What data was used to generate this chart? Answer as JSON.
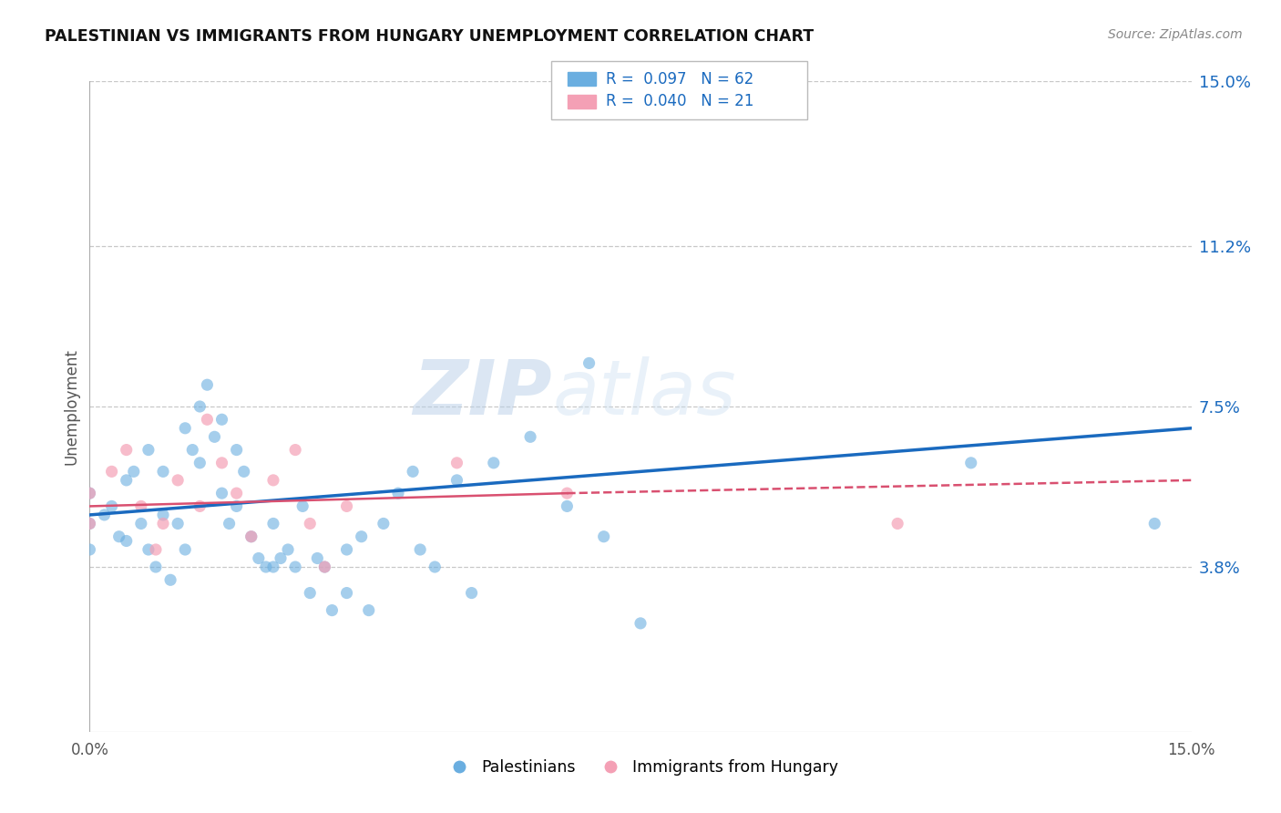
{
  "title": "PALESTINIAN VS IMMIGRANTS FROM HUNGARY UNEMPLOYMENT CORRELATION CHART",
  "source": "Source: ZipAtlas.com",
  "ylabel": "Unemployment",
  "xlim": [
    0,
    0.15
  ],
  "ylim": [
    0,
    0.15
  ],
  "ytick_labels_right": [
    "3.8%",
    "7.5%",
    "11.2%",
    "15.0%"
  ],
  "ytick_vals_right": [
    0.038,
    0.075,
    0.112,
    0.15
  ],
  "grid_color": "#c8c8c8",
  "background_color": "#ffffff",
  "blue_R": 0.097,
  "blue_N": 62,
  "pink_R": 0.04,
  "pink_N": 21,
  "blue_color": "#6aaee0",
  "pink_color": "#f4a0b5",
  "blue_line_color": "#1a6abf",
  "pink_line_color": "#d95070",
  "legend_label_blue": "Palestinians",
  "legend_label_pink": "Immigrants from Hungary",
  "watermark_zip": "ZIP",
  "watermark_atlas": "atlas",
  "blue_scatter_x": [
    0.0,
    0.0,
    0.0,
    0.002,
    0.003,
    0.004,
    0.005,
    0.005,
    0.006,
    0.007,
    0.008,
    0.008,
    0.009,
    0.01,
    0.01,
    0.011,
    0.012,
    0.013,
    0.013,
    0.014,
    0.015,
    0.015,
    0.016,
    0.017,
    0.018,
    0.018,
    0.019,
    0.02,
    0.02,
    0.021,
    0.022,
    0.023,
    0.024,
    0.025,
    0.025,
    0.026,
    0.027,
    0.028,
    0.029,
    0.03,
    0.031,
    0.032,
    0.033,
    0.035,
    0.035,
    0.037,
    0.038,
    0.04,
    0.042,
    0.044,
    0.045,
    0.047,
    0.05,
    0.052,
    0.055,
    0.06,
    0.065,
    0.068,
    0.07,
    0.075,
    0.12,
    0.145
  ],
  "blue_scatter_y": [
    0.055,
    0.048,
    0.042,
    0.05,
    0.052,
    0.045,
    0.058,
    0.044,
    0.06,
    0.048,
    0.065,
    0.042,
    0.038,
    0.06,
    0.05,
    0.035,
    0.048,
    0.07,
    0.042,
    0.065,
    0.075,
    0.062,
    0.08,
    0.068,
    0.055,
    0.072,
    0.048,
    0.065,
    0.052,
    0.06,
    0.045,
    0.04,
    0.038,
    0.048,
    0.038,
    0.04,
    0.042,
    0.038,
    0.052,
    0.032,
    0.04,
    0.038,
    0.028,
    0.032,
    0.042,
    0.045,
    0.028,
    0.048,
    0.055,
    0.06,
    0.042,
    0.038,
    0.058,
    0.032,
    0.062,
    0.068,
    0.052,
    0.085,
    0.045,
    0.025,
    0.062,
    0.048
  ],
  "pink_scatter_x": [
    0.0,
    0.0,
    0.003,
    0.005,
    0.007,
    0.009,
    0.01,
    0.012,
    0.015,
    0.016,
    0.018,
    0.02,
    0.022,
    0.025,
    0.028,
    0.03,
    0.032,
    0.035,
    0.05,
    0.065,
    0.11
  ],
  "pink_scatter_y": [
    0.055,
    0.048,
    0.06,
    0.065,
    0.052,
    0.042,
    0.048,
    0.058,
    0.052,
    0.072,
    0.062,
    0.055,
    0.045,
    0.058,
    0.065,
    0.048,
    0.038,
    0.052,
    0.062,
    0.055,
    0.048
  ]
}
